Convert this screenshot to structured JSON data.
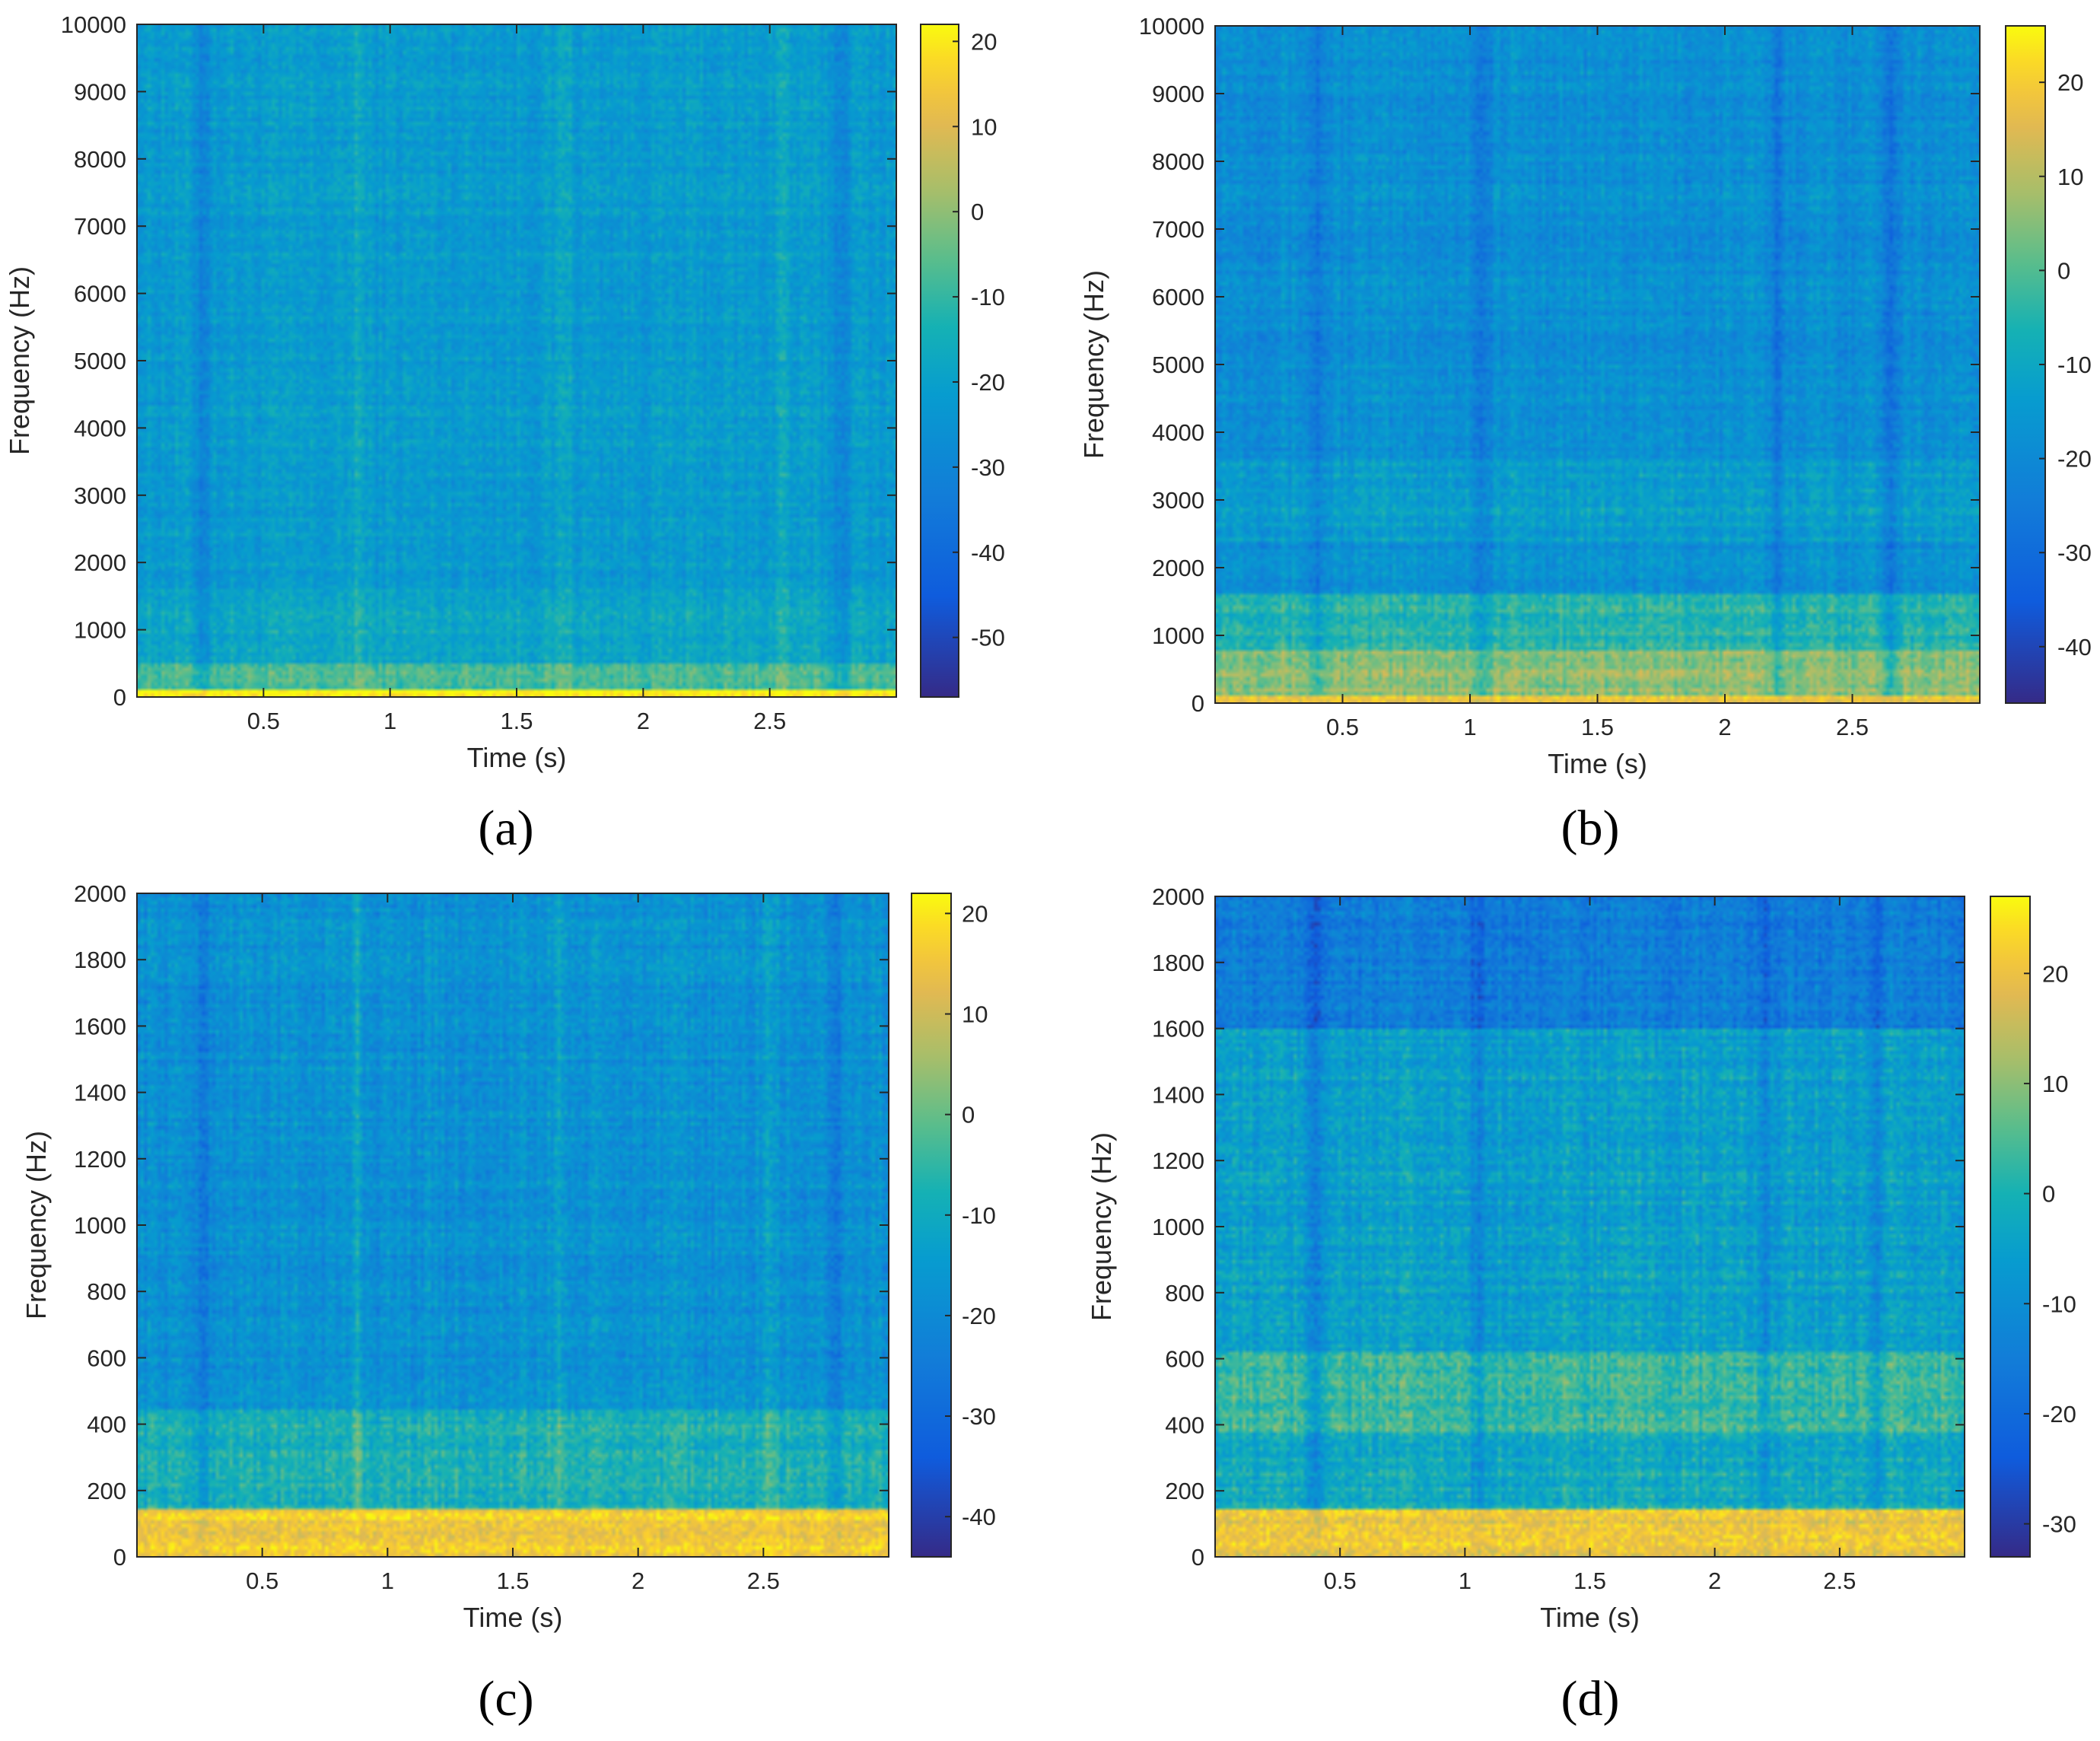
{
  "figure": {
    "labels": [
      "(a)",
      "(b)",
      "(c)",
      "(d)"
    ]
  },
  "chart_data": [
    {
      "type": "heatmap",
      "panel_label": "a",
      "xlabel": "Time (s)",
      "ylabel": "Frequency (Hz)",
      "xlim": [
        0,
        3
      ],
      "ylim": [
        0,
        10000
      ],
      "xticks": [
        0.5,
        1,
        1.5,
        2,
        2.5
      ],
      "xtick_labels": [
        "0.5",
        "1",
        "1.5",
        "2",
        "2.5"
      ],
      "yticks": [
        0,
        1000,
        2000,
        3000,
        4000,
        5000,
        6000,
        7000,
        8000,
        9000,
        10000
      ],
      "ytick_labels": [
        "0",
        "1000",
        "2000",
        "3000",
        "4000",
        "5000",
        "6000",
        "7000",
        "8000",
        "9000",
        "10000"
      ],
      "colorbar": {
        "range": [
          -57,
          22
        ],
        "ticks": [
          20,
          10,
          0,
          -10,
          -20,
          -30,
          -40,
          -50
        ],
        "tick_labels": [
          "20",
          "10",
          "0",
          "-10",
          "-20",
          "-30",
          "-40",
          "-50"
        ]
      },
      "colormap": "parula",
      "bands_hz": [
        {
          "from": 0,
          "to": 120,
          "level_db": 20
        },
        {
          "from": 120,
          "to": 500,
          "level_db": -8
        },
        {
          "from": 500,
          "to": 1600,
          "level_db": -18
        },
        {
          "from": 1600,
          "to": 10000,
          "level_db": -22
        }
      ],
      "bright_columns_s": [
        0.87,
        1.69,
        2.55
      ],
      "dark_columns_s": [
        0.26,
        2.78
      ]
    },
    {
      "type": "heatmap",
      "panel_label": "b",
      "xlabel": "Time (s)",
      "ylabel": "Frequency (Hz)",
      "xlim": [
        0,
        3
      ],
      "ylim": [
        0,
        10000
      ],
      "xticks": [
        0.5,
        1,
        1.5,
        2,
        2.5
      ],
      "xtick_labels": [
        "0.5",
        "1",
        "1.5",
        "2",
        "2.5"
      ],
      "yticks": [
        0,
        1000,
        2000,
        3000,
        4000,
        5000,
        6000,
        7000,
        8000,
        9000,
        10000
      ],
      "ytick_labels": [
        "0",
        "1000",
        "2000",
        "3000",
        "4000",
        "5000",
        "6000",
        "7000",
        "8000",
        "9000",
        "10000"
      ],
      "colorbar": {
        "range": [
          -46,
          26
        ],
        "ticks": [
          20,
          10,
          0,
          -10,
          -20,
          -30,
          -40
        ],
        "tick_labels": [
          "20",
          "10",
          "0",
          "-10",
          "-20",
          "-30",
          "-40"
        ]
      },
      "colormap": "parula",
      "bands_hz": [
        {
          "from": 0,
          "to": 100,
          "level_db": 18
        },
        {
          "from": 100,
          "to": 800,
          "level_db": 6
        },
        {
          "from": 800,
          "to": 1600,
          "level_db": -5
        },
        {
          "from": 1600,
          "to": 2400,
          "level_db": -18
        },
        {
          "from": 2400,
          "to": 3600,
          "level_db": -13
        },
        {
          "from": 3600,
          "to": 10000,
          "level_db": -18
        }
      ],
      "bright_columns_s": [],
      "dark_columns_s": [
        0.4,
        1.05,
        2.2,
        2.65
      ]
    },
    {
      "type": "heatmap",
      "panel_label": "c",
      "xlabel": "Time (s)",
      "ylabel": "Frequency (Hz)",
      "xlim": [
        0,
        3
      ],
      "ylim": [
        0,
        2000
      ],
      "xticks": [
        0.5,
        1,
        1.5,
        2,
        2.5
      ],
      "xtick_labels": [
        "0.5",
        "1",
        "1.5",
        "2",
        "2.5"
      ],
      "yticks": [
        0,
        200,
        400,
        600,
        800,
        1000,
        1200,
        1400,
        1600,
        1800,
        2000
      ],
      "ytick_labels": [
        "0",
        "200",
        "400",
        "600",
        "800",
        "1000",
        "1200",
        "1400",
        "1600",
        "1800",
        "2000"
      ],
      "colorbar": {
        "range": [
          -44,
          22
        ],
        "ticks": [
          20,
          10,
          0,
          -10,
          -20,
          -30,
          -40
        ],
        "tick_labels": [
          "20",
          "10",
          "0",
          "-10",
          "-20",
          "-30",
          "-40"
        ]
      },
      "colormap": "parula",
      "bands_hz": [
        {
          "from": 0,
          "to": 140,
          "level_db": 16
        },
        {
          "from": 140,
          "to": 450,
          "level_db": -8
        },
        {
          "from": 450,
          "to": 2000,
          "level_db": -18
        }
      ],
      "bright_columns_s": [
        0.88,
        1.68,
        2.52
      ],
      "dark_columns_s": [
        0.26,
        2.78
      ]
    },
    {
      "type": "heatmap",
      "panel_label": "d",
      "xlabel": "Time (s)",
      "ylabel": "Frequency (Hz)",
      "xlim": [
        0,
        3
      ],
      "ylim": [
        0,
        2000
      ],
      "xticks": [
        0.5,
        1,
        1.5,
        2,
        2.5
      ],
      "xtick_labels": [
        "0.5",
        "1",
        "1.5",
        "2",
        "2.5"
      ],
      "yticks": [
        0,
        200,
        400,
        600,
        800,
        1000,
        1200,
        1400,
        1600,
        1800,
        2000
      ],
      "ytick_labels": [
        "0",
        "200",
        "400",
        "600",
        "800",
        "1000",
        "1200",
        "1400",
        "1600",
        "1800",
        "2000"
      ],
      "colorbar": {
        "range": [
          -33,
          27
        ],
        "ticks": [
          20,
          10,
          0,
          -10,
          -20,
          -30
        ],
        "tick_labels": [
          "20",
          "10",
          "0",
          "-10",
          "-20",
          "-30"
        ]
      },
      "colormap": "parula",
      "bands_hz": [
        {
          "from": 0,
          "to": 140,
          "level_db": 20
        },
        {
          "from": 140,
          "to": 380,
          "level_db": -2
        },
        {
          "from": 380,
          "to": 620,
          "level_db": 3
        },
        {
          "from": 620,
          "to": 1600,
          "level_db": -5
        },
        {
          "from": 1600,
          "to": 2000,
          "level_db": -15
        }
      ],
      "bright_columns_s": [],
      "dark_columns_s": [
        0.4,
        1.05,
        2.2,
        2.65
      ]
    }
  ]
}
